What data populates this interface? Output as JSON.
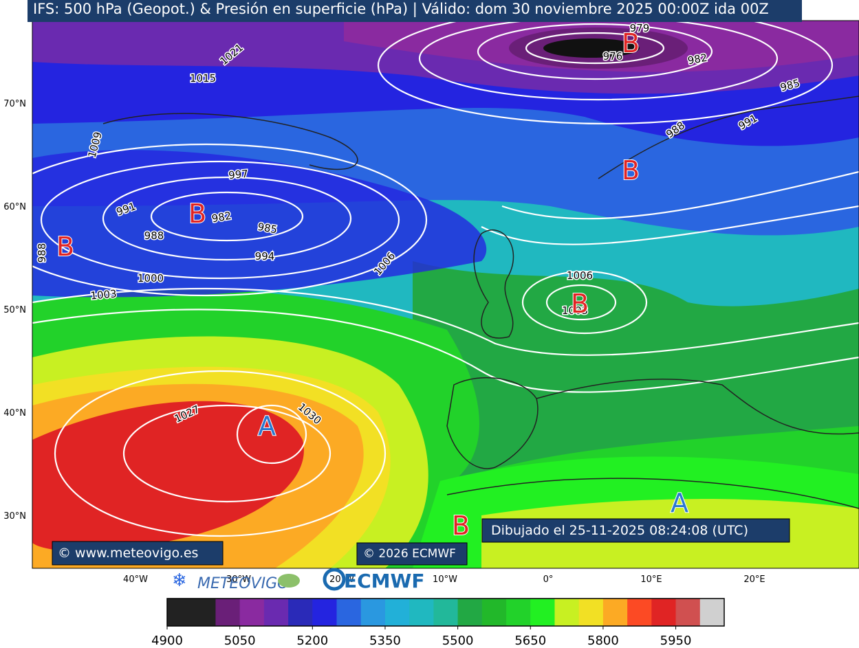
{
  "header": {
    "title": "IFS: 500 hPa (Geopot.) & Presión en superficie (hPa)  |  Válido: dom 30 noviembre 2025 00:00Z ida 00Z"
  },
  "map": {
    "lat_labels": [
      "70°N",
      "60°N",
      "50°N",
      "40°N",
      "30°N"
    ],
    "lon_labels": [
      "40°W",
      "30°W",
      "20°W",
      "10°W",
      "0°",
      "10°E",
      "20°E"
    ],
    "isobar_labels": [
      "979",
      "976",
      "982",
      "985",
      "988",
      "991",
      "1021",
      "1015",
      "1009",
      "997",
      "991",
      "982",
      "985",
      "988",
      "994",
      "1000",
      "1003",
      "1006",
      "1006",
      "1003",
      "1027",
      "1030",
      "988"
    ],
    "centers": [
      "B",
      "B",
      "B",
      "B",
      "B",
      "A",
      "B",
      "A"
    ]
  },
  "footer": {
    "credit_site": "© www.meteovigo.es",
    "credit_ecmwf": "© 2026 ECMWF",
    "drawn": "Dibujado el 25-11-2025 08:24:08 (UTC)",
    "logo_meteovigo": "METEOVIGO",
    "logo_ecmwf": "ECMWF"
  },
  "colorbar": {
    "range": [
      4900,
      6050
    ],
    "ticks": [
      4900,
      5050,
      5200,
      5350,
      5500,
      5650,
      5800,
      5950
    ],
    "colors": [
      "#222222",
      "#222222",
      "#6a1f78",
      "#8a2aa0",
      "#6a2ab0",
      "#2a2ab8",
      "#2424e0",
      "#2a66e0",
      "#2a98e0",
      "#22b0d8",
      "#20b8c0",
      "#22b89a",
      "#22a844",
      "#22b82a",
      "#22d22a",
      "#22f022",
      "#c8f022",
      "#f2e024",
      "#fcaa24",
      "#fc4a24",
      "#e02424",
      "#d05050",
      "#d0d0d0"
    ]
  }
}
